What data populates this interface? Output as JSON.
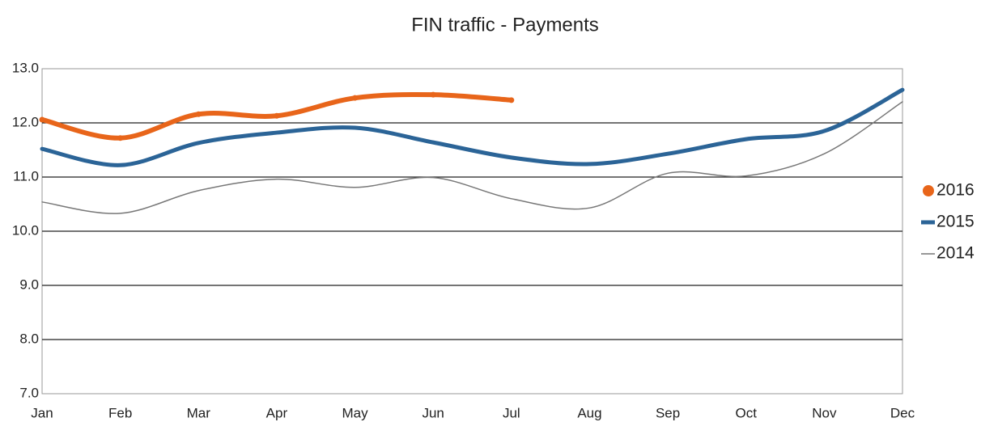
{
  "chart_data": {
    "type": "line",
    "title": "FIN traffic - Payments",
    "categories": [
      "Jan",
      "Feb",
      "Mar",
      "Apr",
      "May",
      "Jun",
      "Jul",
      "Aug",
      "Sep",
      "Oct",
      "Nov",
      "Dec"
    ],
    "series": [
      {
        "name": "2016",
        "color": "#e8651a",
        "width": 6,
        "marker": true,
        "values": [
          12.06,
          11.72,
          12.16,
          12.13,
          12.46,
          12.52,
          12.42,
          null,
          null,
          null,
          null,
          null
        ]
      },
      {
        "name": "2015",
        "color": "#2b6497",
        "width": 5,
        "marker": false,
        "values": [
          11.52,
          11.22,
          11.63,
          11.82,
          11.91,
          11.64,
          11.36,
          11.24,
          11.43,
          11.7,
          11.85,
          12.61
        ]
      },
      {
        "name": "2014",
        "color": "#777777",
        "width": 1.5,
        "marker": false,
        "values": [
          10.54,
          10.33,
          10.75,
          10.96,
          10.81,
          10.99,
          10.6,
          10.43,
          11.07,
          11.02,
          11.43,
          12.39
        ]
      }
    ],
    "ylim": [
      7,
      13
    ],
    "yticks": [
      {
        "value": 7,
        "label": "7.0"
      },
      {
        "value": 8,
        "label": "8.0"
      },
      {
        "value": 9,
        "label": "9.0"
      },
      {
        "value": 10,
        "label": "10.0"
      },
      {
        "value": 11,
        "label": "11.0"
      },
      {
        "value": 12,
        "label": "12.0"
      },
      {
        "value": 13,
        "label": "13.0"
      }
    ],
    "grid": true,
    "legend": "right"
  }
}
